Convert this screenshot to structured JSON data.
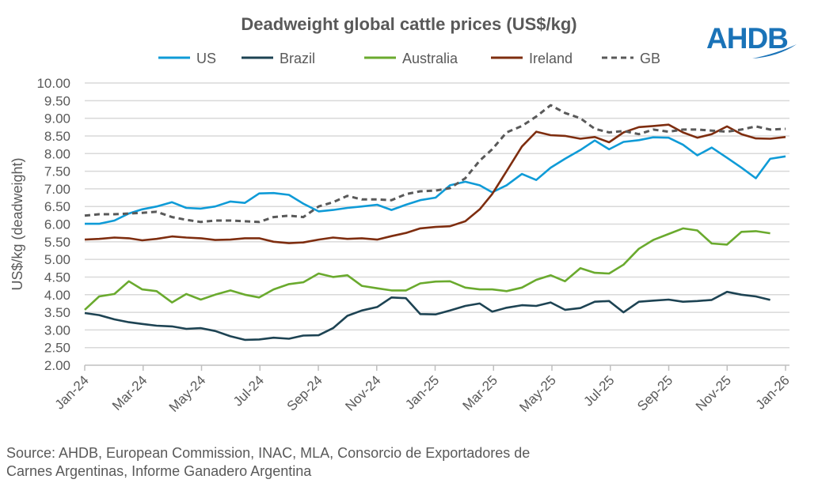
{
  "chart_data": {
    "type": "line",
    "title": "Deadweight global cattle prices (US$/kg)",
    "ylabel": "US$/kg (deadweight)",
    "xlabel": "",
    "ylim": [
      2.0,
      10.0
    ],
    "yticks": [
      "2.00",
      "2.50",
      "3.00",
      "3.50",
      "4.00",
      "4.50",
      "5.00",
      "5.50",
      "6.00",
      "6.50",
      "7.00",
      "7.50",
      "8.00",
      "8.50",
      "9.00",
      "9.50",
      "10.00"
    ],
    "xticks": [
      "Jan-24",
      "Mar-24",
      "May-24",
      "Jul-24",
      "Sep-24",
      "Nov-24",
      "Jan-25",
      "Mar-25",
      "May-25",
      "Jul-25",
      "Sep-25",
      "Nov-25",
      "Jan-26"
    ],
    "grid": "horizontal",
    "legend_position": "top",
    "x": [
      "2024-01-01",
      "2024-01-16",
      "2024-02-01",
      "2024-02-16",
      "2024-03-01",
      "2024-03-16",
      "2024-04-01",
      "2024-04-16",
      "2024-05-01",
      "2024-05-16",
      "2024-06-01",
      "2024-06-16",
      "2024-07-01",
      "2024-07-16",
      "2024-08-01",
      "2024-08-16",
      "2024-09-01",
      "2024-09-16",
      "2024-10-01",
      "2024-10-16",
      "2024-11-01",
      "2024-11-16",
      "2024-12-01",
      "2024-12-16",
      "2025-01-01",
      "2025-01-16",
      "2025-02-01",
      "2025-02-16",
      "2025-03-01",
      "2025-03-16",
      "2025-04-01",
      "2025-04-16",
      "2025-05-01",
      "2025-05-16",
      "2025-06-01",
      "2025-06-16",
      "2025-07-01",
      "2025-07-16",
      "2025-08-01",
      "2025-08-16",
      "2025-09-01",
      "2025-09-16",
      "2025-10-01",
      "2025-10-16",
      "2025-11-01",
      "2025-11-16",
      "2025-12-01",
      "2025-12-16",
      "2026-01-01"
    ],
    "series": [
      {
        "name": "US",
        "color": "#0f9bd7",
        "dash": false,
        "values": [
          6.01,
          6.01,
          6.1,
          6.3,
          6.42,
          6.5,
          6.62,
          6.46,
          6.44,
          6.5,
          6.64,
          6.6,
          6.87,
          6.88,
          6.83,
          6.58,
          6.36,
          6.4,
          6.46,
          6.5,
          6.55,
          6.4,
          6.55,
          6.68,
          6.75,
          7.1,
          7.2,
          7.1,
          6.9,
          7.1,
          7.42,
          7.25,
          7.6,
          7.85,
          8.1,
          8.37,
          8.12,
          8.33,
          8.38,
          8.46,
          8.45,
          8.25,
          7.95,
          8.17,
          7.88,
          7.6,
          7.3,
          7.85,
          7.92
        ]
      },
      {
        "name": "Brazil",
        "color": "#1d4353",
        "dash": false,
        "values": [
          3.48,
          3.42,
          3.3,
          3.22,
          3.17,
          3.12,
          3.1,
          3.03,
          3.05,
          2.97,
          2.82,
          2.72,
          2.73,
          2.78,
          2.75,
          2.84,
          2.85,
          3.05,
          3.4,
          3.55,
          3.65,
          3.92,
          3.9,
          3.45,
          3.44,
          3.55,
          3.68,
          3.75,
          3.52,
          3.63,
          3.7,
          3.68,
          3.78,
          3.57,
          3.62,
          3.8,
          3.82,
          3.5,
          3.8,
          3.83,
          3.86,
          3.8,
          3.82,
          3.85,
          4.08,
          4.0,
          3.95,
          3.85,
          null
        ]
      },
      {
        "name": "Australia",
        "color": "#6aaa2e",
        "dash": false,
        "values": [
          3.57,
          3.95,
          4.02,
          4.38,
          4.15,
          4.1,
          3.78,
          4.02,
          3.86,
          4.0,
          4.12,
          4.0,
          3.92,
          4.15,
          4.3,
          4.35,
          4.6,
          4.5,
          4.55,
          4.25,
          4.18,
          4.12,
          4.12,
          4.32,
          4.37,
          4.38,
          4.2,
          4.15,
          4.15,
          4.1,
          4.2,
          4.42,
          4.55,
          4.38,
          4.75,
          4.62,
          4.6,
          4.85,
          5.3,
          5.55,
          5.72,
          5.88,
          5.82,
          5.45,
          5.42,
          5.78,
          5.8,
          5.74,
          null
        ]
      },
      {
        "name": "Ireland",
        "color": "#7e2d0f",
        "dash": false,
        "values": [
          5.56,
          5.58,
          5.62,
          5.6,
          5.54,
          5.58,
          5.65,
          5.62,
          5.6,
          5.55,
          5.56,
          5.6,
          5.6,
          5.5,
          5.46,
          5.48,
          5.56,
          5.62,
          5.58,
          5.6,
          5.56,
          5.66,
          5.75,
          5.88,
          5.92,
          5.94,
          6.08,
          6.42,
          6.85,
          7.5,
          8.2,
          8.62,
          8.52,
          8.5,
          8.42,
          8.47,
          8.32,
          8.6,
          8.75,
          8.78,
          8.82,
          8.6,
          8.45,
          8.55,
          8.77,
          8.55,
          8.43,
          8.42,
          8.47
        ]
      },
      {
        "name": "GB",
        "color": "#595959",
        "dash": true,
        "values": [
          6.24,
          6.28,
          6.28,
          6.3,
          6.32,
          6.35,
          6.2,
          6.12,
          6.06,
          6.1,
          6.1,
          6.08,
          6.06,
          6.2,
          6.24,
          6.2,
          6.5,
          6.62,
          6.8,
          6.7,
          6.7,
          6.68,
          6.85,
          6.93,
          6.95,
          7.02,
          7.3,
          7.8,
          8.12,
          8.6,
          8.78,
          9.05,
          9.37,
          9.15,
          9.0,
          8.7,
          8.6,
          8.64,
          8.55,
          8.68,
          8.62,
          8.68,
          8.68,
          8.65,
          8.62,
          8.68,
          8.77,
          8.68,
          8.7
        ]
      }
    ]
  },
  "logo": {
    "text": "AHDB",
    "color": "#1a73b8"
  },
  "source": {
    "line1": "Source: AHDB, European Commission, INAC, MLA, Consorcio de Exportadores de",
    "line2": "Carnes Argentinas, Informe Ganadero Argentina"
  }
}
